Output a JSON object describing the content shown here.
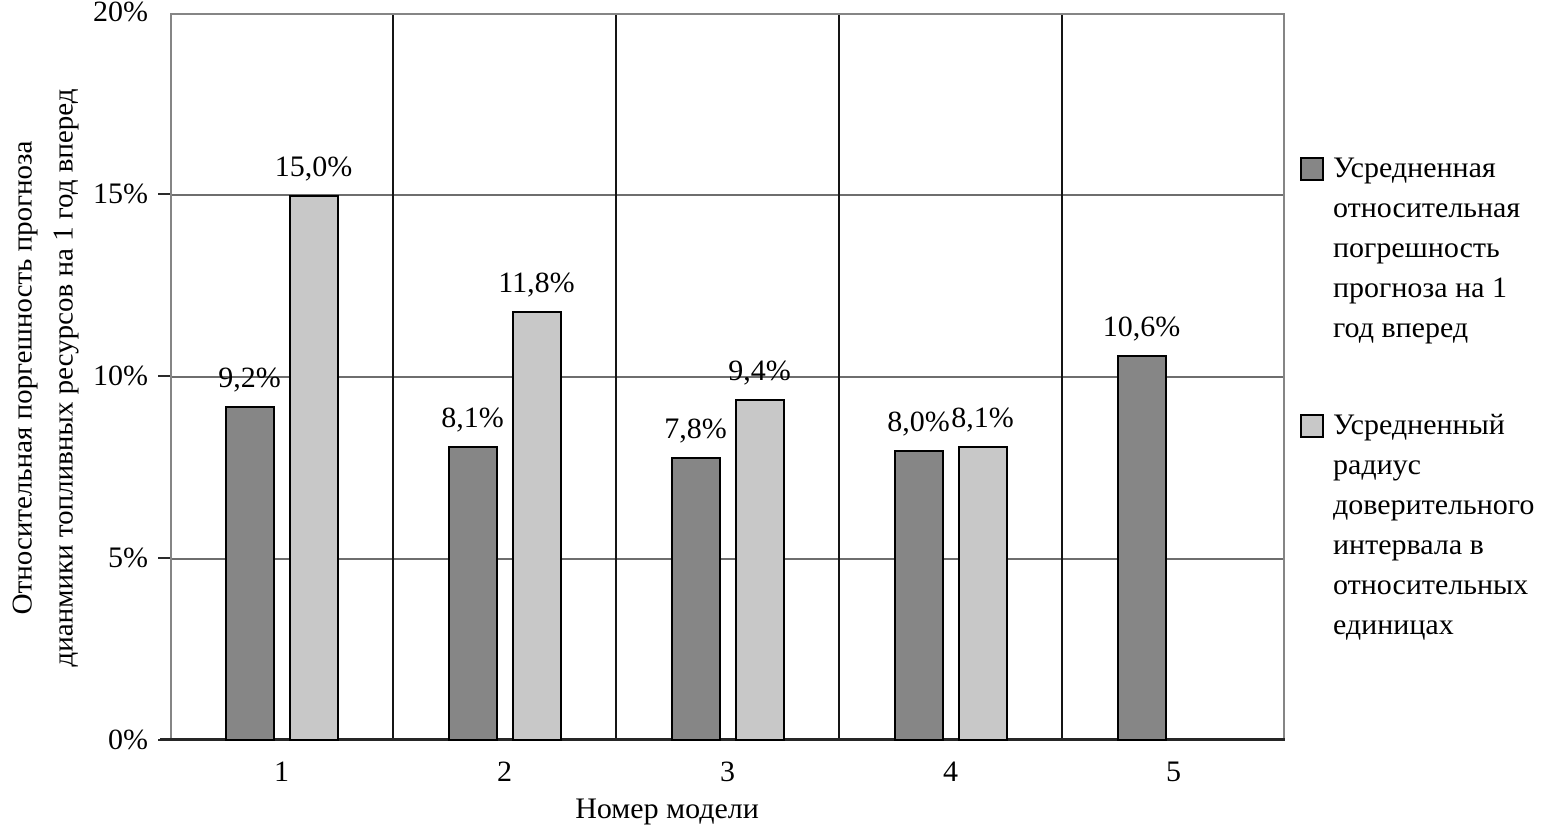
{
  "chart_data": {
    "type": "bar",
    "categories": [
      "1",
      "2",
      "3",
      "4",
      "5"
    ],
    "series": [
      {
        "name": "Усредненная относительная погрешность прогноза на 1 год вперед",
        "color": "#868686",
        "values": [
          9.2,
          8.1,
          7.8,
          8.0,
          10.6
        ],
        "value_labels": [
          "9,2%",
          "8,1%",
          "7,8%",
          "8,0%",
          "10,6%"
        ]
      },
      {
        "name": "Усредненный радиус доверительного интервала в относительных единицах",
        "color": "#c8c8c8",
        "values": [
          15.0,
          11.8,
          9.4,
          8.1,
          null
        ],
        "value_labels": [
          "15,0%",
          "11,8%",
          "9,4%",
          "8,1%",
          null
        ]
      }
    ],
    "xlabel": "Номер модели",
    "ylabel_line1": "Относительная поргешность прогноза",
    "ylabel_line2": "дианмики топливных ресурсов на 1 год вперед",
    "ylim": [
      0,
      20
    ],
    "ytick_step": 5,
    "yticks": [
      "0%",
      "5%",
      "10%",
      "15%",
      "20%"
    ],
    "grid": "horizontal gridlines gray, vertical category separators black",
    "legend_position": "right"
  }
}
